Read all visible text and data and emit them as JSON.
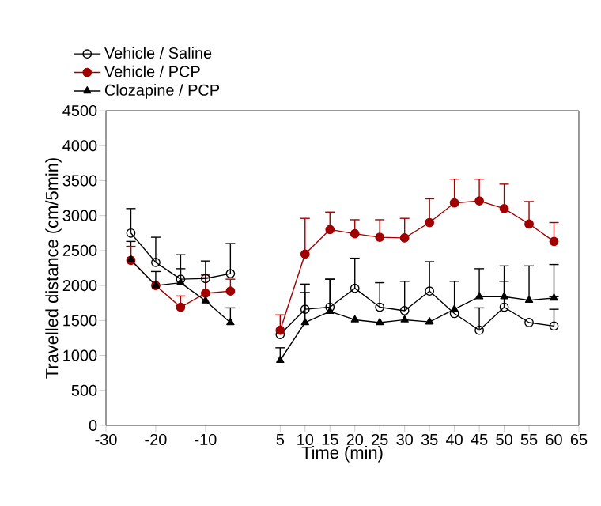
{
  "chart_data": {
    "type": "line",
    "xlabel": "Time (min)",
    "ylabel": "Travelled distance (cm/5min)",
    "x": [
      -25,
      -20,
      -15,
      -10,
      -5,
      0,
      5,
      10,
      15,
      20,
      25,
      30,
      35,
      40,
      45,
      50,
      55,
      60
    ],
    "xlim": [
      -30,
      65
    ],
    "xticks": [
      -30,
      -20,
      -10,
      5,
      10,
      15,
      20,
      25,
      30,
      35,
      40,
      45,
      50,
      55,
      60,
      65
    ],
    "ylim": [
      0,
      4500
    ],
    "yticks": [
      0,
      500,
      1000,
      1500,
      2000,
      2500,
      3000,
      3500,
      4000,
      4500
    ],
    "legend": "top left",
    "series": [
      {
        "name": "Vehicle / Saline",
        "color": "#000000",
        "marker": "circle",
        "values": [
          2750,
          2330,
          2090,
          2100,
          2170,
          null,
          1300,
          1660,
          1690,
          1960,
          1690,
          1640,
          1920,
          1600,
          1360,
          1690,
          1470,
          1420
        ],
        "errors": [
          [
            2750,
            3100
          ],
          [
            2330,
            2690
          ],
          [
            2090,
            2440
          ],
          [
            2100,
            2350
          ],
          [
            2170,
            2600
          ],
          null,
          null,
          [
            1660,
            2020
          ],
          [
            1690,
            2090
          ],
          [
            1960,
            2390
          ],
          [
            1690,
            2040
          ],
          [
            1640,
            2060
          ],
          [
            1920,
            2340
          ],
          null,
          [
            1360,
            1680
          ],
          [
            1690,
            2060
          ],
          null,
          [
            1420,
            1660
          ]
        ]
      },
      {
        "name": "Vehicle / PCP",
        "color": "#a00000",
        "marker": "circle_filled",
        "values": [
          2360,
          2000,
          1690,
          1890,
          1920,
          null,
          1360,
          2450,
          2800,
          2740,
          2690,
          2680,
          2900,
          3180,
          3210,
          3100,
          2880,
          2630
        ],
        "errors": [
          [
            2360,
            2560
          ],
          null,
          [
            1690,
            1850
          ],
          [
            1890,
            2150
          ],
          [
            1920,
            2090
          ],
          null,
          [
            1360,
            1580
          ],
          [
            2450,
            2960
          ],
          [
            2800,
            3050
          ],
          [
            2740,
            2940
          ],
          [
            2690,
            2940
          ],
          [
            2680,
            2960
          ],
          [
            2900,
            3240
          ],
          [
            3180,
            3520
          ],
          [
            3210,
            3520
          ],
          [
            3100,
            3450
          ],
          [
            2880,
            3200
          ],
          [
            2630,
            2900
          ]
        ]
      },
      {
        "name": "Clozapine / PCP",
        "color": "#000000",
        "marker": "triangle",
        "values": [
          2370,
          2000,
          2040,
          1780,
          1470,
          null,
          930,
          1470,
          1630,
          1510,
          1470,
          1510,
          1480,
          1660,
          1840,
          1840,
          1790,
          1820
        ],
        "errors": [
          [
            2370,
            2630
          ],
          [
            2000,
            2200
          ],
          [
            2040,
            2240
          ],
          [
            1780,
            2110
          ],
          [
            1470,
            1680
          ],
          null,
          [
            930,
            1110
          ],
          [
            1470,
            1900
          ],
          [
            1630,
            2090
          ],
          null,
          null,
          null,
          null,
          [
            1660,
            2060
          ],
          [
            1840,
            2240
          ],
          [
            1840,
            2280
          ],
          [
            1790,
            2280
          ],
          [
            1840,
            2300
          ]
        ]
      }
    ]
  }
}
